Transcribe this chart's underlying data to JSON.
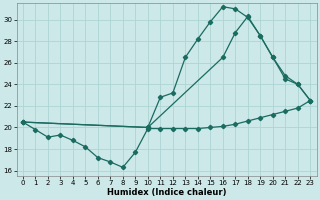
{
  "xlabel": "Humidex (Indice chaleur)",
  "bg_color": "#cce8e8",
  "grid_color": "#aed4d4",
  "line_color": "#1a6b60",
  "xlim": [
    -0.5,
    23.5
  ],
  "ylim": [
    15.5,
    31.5
  ],
  "xticks": [
    0,
    1,
    2,
    3,
    4,
    5,
    6,
    7,
    8,
    9,
    10,
    11,
    12,
    13,
    14,
    15,
    16,
    17,
    18,
    19,
    20,
    21,
    22,
    23
  ],
  "yticks": [
    16,
    18,
    20,
    22,
    24,
    26,
    28,
    30
  ],
  "line1_x": [
    0,
    1,
    2,
    3,
    4,
    5,
    6,
    7,
    8,
    9,
    10,
    11,
    12,
    13,
    14,
    15,
    16,
    17,
    18,
    19,
    20,
    21,
    22,
    23
  ],
  "line1_y": [
    20.5,
    19.8,
    19.1,
    19.3,
    18.8,
    18.2,
    17.2,
    16.8,
    16.3,
    17.7,
    19.9,
    19.9,
    19.9,
    19.9,
    19.9,
    20.0,
    20.1,
    20.3,
    20.6,
    20.9,
    21.2,
    21.5,
    21.8,
    22.5
  ],
  "line2_x": [
    0,
    10,
    16,
    17,
    18,
    19,
    20,
    21,
    22,
    23
  ],
  "line2_y": [
    20.5,
    20.0,
    26.5,
    28.8,
    30.3,
    28.5,
    26.5,
    24.5,
    24.0,
    22.5
  ],
  "line3_x": [
    0,
    10,
    11,
    12,
    13,
    14,
    15,
    16,
    17,
    18,
    19,
    20,
    21,
    22,
    23
  ],
  "line3_y": [
    20.5,
    20.0,
    22.8,
    23.2,
    26.5,
    28.2,
    29.8,
    31.2,
    31.0,
    30.2,
    28.5,
    26.5,
    24.8,
    24.0,
    22.5
  ]
}
